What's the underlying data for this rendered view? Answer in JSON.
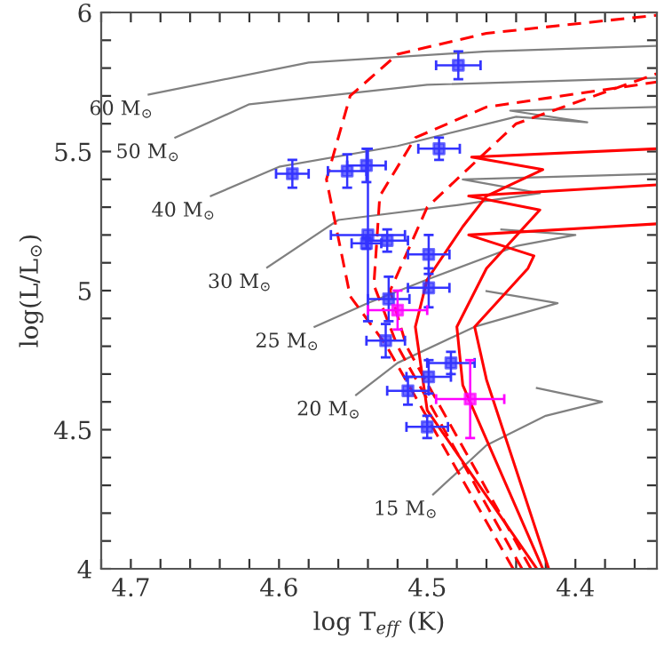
{
  "chart_data": {
    "type": "line",
    "xlabel": "log T$_{eff}$ (K)",
    "ylabel": "log(L/L$_{⊙}$)",
    "xlim": [
      4.72,
      4.345
    ],
    "ylim": [
      4,
      6
    ],
    "xticks": [
      {
        "value": 4.72,
        "label": null
      },
      4.7,
      {
        "value": 4.68,
        "label": null
      },
      {
        "value": 4.66,
        "label": null
      },
      {
        "value": 4.64,
        "label": null
      },
      {
        "value": 4.62,
        "label": null
      },
      4.6,
      {
        "value": 4.58,
        "label": null
      },
      {
        "value": 4.56,
        "label": null
      },
      {
        "value": 4.54,
        "label": null
      },
      {
        "value": 4.52,
        "label": null
      },
      4.5,
      {
        "value": 4.48,
        "label": null
      },
      {
        "value": 4.46,
        "label": null
      },
      {
        "value": 4.44,
        "label": null
      },
      {
        "value": 4.42,
        "label": null
      },
      4.4,
      {
        "value": 4.38,
        "label": null
      },
      {
        "value": 4.36,
        "label": null
      }
    ],
    "yticks": [
      4,
      {
        "value": 4.1,
        "label": null
      },
      {
        "value": 4.2,
        "label": null
      },
      {
        "value": 4.3,
        "label": null
      },
      {
        "value": 4.4,
        "label": null
      },
      4.5,
      {
        "value": 4.6,
        "label": null
      },
      {
        "value": 4.7,
        "label": null
      },
      {
        "value": 4.8,
        "label": null
      },
      {
        "value": 4.9,
        "label": null
      },
      5,
      {
        "value": 5.1,
        "label": null
      },
      {
        "value": 5.2,
        "label": null
      },
      {
        "value": 5.3,
        "label": null
      },
      {
        "value": 5.4,
        "label": null
      },
      5.5,
      {
        "value": 5.6,
        "label": null
      },
      {
        "value": 5.7,
        "label": null
      },
      {
        "value": 5.8,
        "label": null
      },
      {
        "value": 5.9,
        "label": null
      },
      6
    ],
    "series": [
      {
        "name": "60 M$_{⊙}$",
        "color": "#808080",
        "line_style": "solid",
        "x": [
          4.688,
          4.58,
          4.46,
          4.345
        ],
        "values": [
          5.705,
          5.82,
          5.86,
          5.88
        ]
      },
      {
        "name": "50 M$_{⊙}$",
        "color": "#808080",
        "line_style": "solid",
        "x": [
          4.67,
          4.62,
          4.5,
          4.345
        ],
        "values": [
          5.55,
          5.67,
          5.74,
          5.765
        ]
      },
      {
        "name": "40 M$_{⊙}$",
        "color": "#808080",
        "line_style": "solid",
        "x": [
          4.646,
          4.6,
          4.52,
          4.44,
          4.392,
          4.444,
          4.345
        ],
        "values": [
          5.34,
          5.445,
          5.52,
          5.625,
          5.605,
          5.647,
          5.66
        ]
      },
      {
        "name": "30 M$_{⊙}$",
        "color": "#808080",
        "line_style": "solid",
        "x": [
          4.608,
          4.56,
          4.48,
          4.424,
          4.476,
          4.345
        ],
        "values": [
          5.083,
          5.254,
          5.307,
          5.35,
          5.4,
          5.42
        ]
      },
      {
        "name": "25 M$_{⊙}$",
        "color": "#808080",
        "line_style": "solid",
        "x": [
          4.576,
          4.54,
          4.5,
          4.44,
          4.4,
          4.45
        ],
        "values": [
          4.87,
          4.955,
          5.04,
          5.16,
          5.2,
          5.22
        ]
      },
      {
        "name": "20 M$_{⊙}$",
        "color": "#808080",
        "line_style": "solid",
        "x": [
          4.548,
          4.52,
          4.468,
          4.412,
          4.46
        ],
        "values": [
          4.625,
          4.74,
          4.87,
          4.955,
          4.998
        ]
      },
      {
        "name": "15 M$_{⊙}$",
        "color": "#808080",
        "line_style": "solid",
        "x": [
          4.496,
          4.46,
          4.42,
          4.382,
          4.426
        ],
        "values": [
          4.267,
          4.444,
          4.55,
          4.6,
          4.65
        ]
      },
      {
        "color": "#ff0000",
        "line_style": "dashed",
        "x": [
          4.442,
          4.528,
          4.552,
          4.568,
          4.552,
          4.52,
          4.46,
          4.345
        ],
        "values": [
          4.0,
          4.806,
          4.98,
          5.4,
          5.7,
          5.85,
          5.925,
          5.99
        ]
      },
      {
        "color": "#ff0000",
        "line_style": "dashed",
        "x": [
          4.436,
          4.52,
          4.536,
          4.532,
          4.508,
          4.46,
          4.345
        ],
        "values": [
          4.0,
          4.8,
          5.02,
          5.34,
          5.55,
          5.66,
          5.75
        ]
      },
      {
        "color": "#ff0000",
        "line_style": "dashed",
        "x": [
          4.43,
          4.514,
          4.525,
          4.5,
          4.44,
          4.345
        ],
        "values": [
          4.0,
          4.8,
          5.0,
          5.3,
          5.6,
          5.78
        ]
      },
      {
        "color": "#ff0000",
        "line_style": "solid",
        "x": [
          4.426,
          4.5,
          4.508,
          4.5,
          4.476,
          4.46,
          4.422,
          4.47,
          4.345
        ],
        "values": [
          4.0,
          4.57,
          4.87,
          5.04,
          5.23,
          5.34,
          5.435,
          5.48,
          5.51
        ]
      },
      {
        "color": "#ff0000",
        "line_style": "solid",
        "x": [
          4.422,
          4.476,
          4.48,
          4.46,
          4.424,
          4.472,
          4.345
        ],
        "values": [
          4.0,
          4.66,
          4.87,
          5.08,
          5.29,
          5.34,
          5.38
        ]
      },
      {
        "color": "#ff0000",
        "line_style": "solid",
        "x": [
          4.418,
          4.46,
          4.468,
          4.432,
          4.428,
          4.472,
          4.345
        ],
        "values": [
          4.0,
          4.68,
          4.87,
          5.08,
          5.125,
          5.2,
          5.24
        ]
      },
      {
        "type": "scatter",
        "color": "#3333ff",
        "marker": "square",
        "x": [
          4.479,
          4.492,
          4.591,
          4.554,
          4.541,
          4.54,
          4.541,
          4.527,
          4.499,
          4.499,
          4.526,
          4.528,
          4.484,
          4.499,
          4.513,
          4.5
        ],
        "values": [
          5.81,
          5.51,
          5.42,
          5.43,
          5.45,
          5.2,
          5.17,
          5.18,
          5.13,
          5.01,
          4.97,
          4.82,
          4.74,
          4.69,
          4.64,
          4.51
        ],
        "xerrors": [
          0.015,
          0.014,
          0.011,
          0.013,
          0.013,
          0.025,
          0.01,
          0.014,
          0.014,
          0.014,
          0.014,
          0.013,
          0.016,
          0.015,
          0.014,
          0.014
        ],
        "errors": [
          0.05,
          0.04,
          0.05,
          0.06,
          0.06,
          0.31,
          0.02,
          0.04,
          0.07,
          0.07,
          0.08,
          0.06,
          0.04,
          0.06,
          0.05,
          0.04
        ]
      },
      {
        "type": "scatter",
        "color": "#ff00ff",
        "marker": "square",
        "x": [
          4.52,
          4.471
        ],
        "values": [
          4.93,
          4.61
        ],
        "xerrors": [
          0.02,
          0.023
        ],
        "errors": [
          0.07,
          0.14
        ]
      }
    ]
  }
}
